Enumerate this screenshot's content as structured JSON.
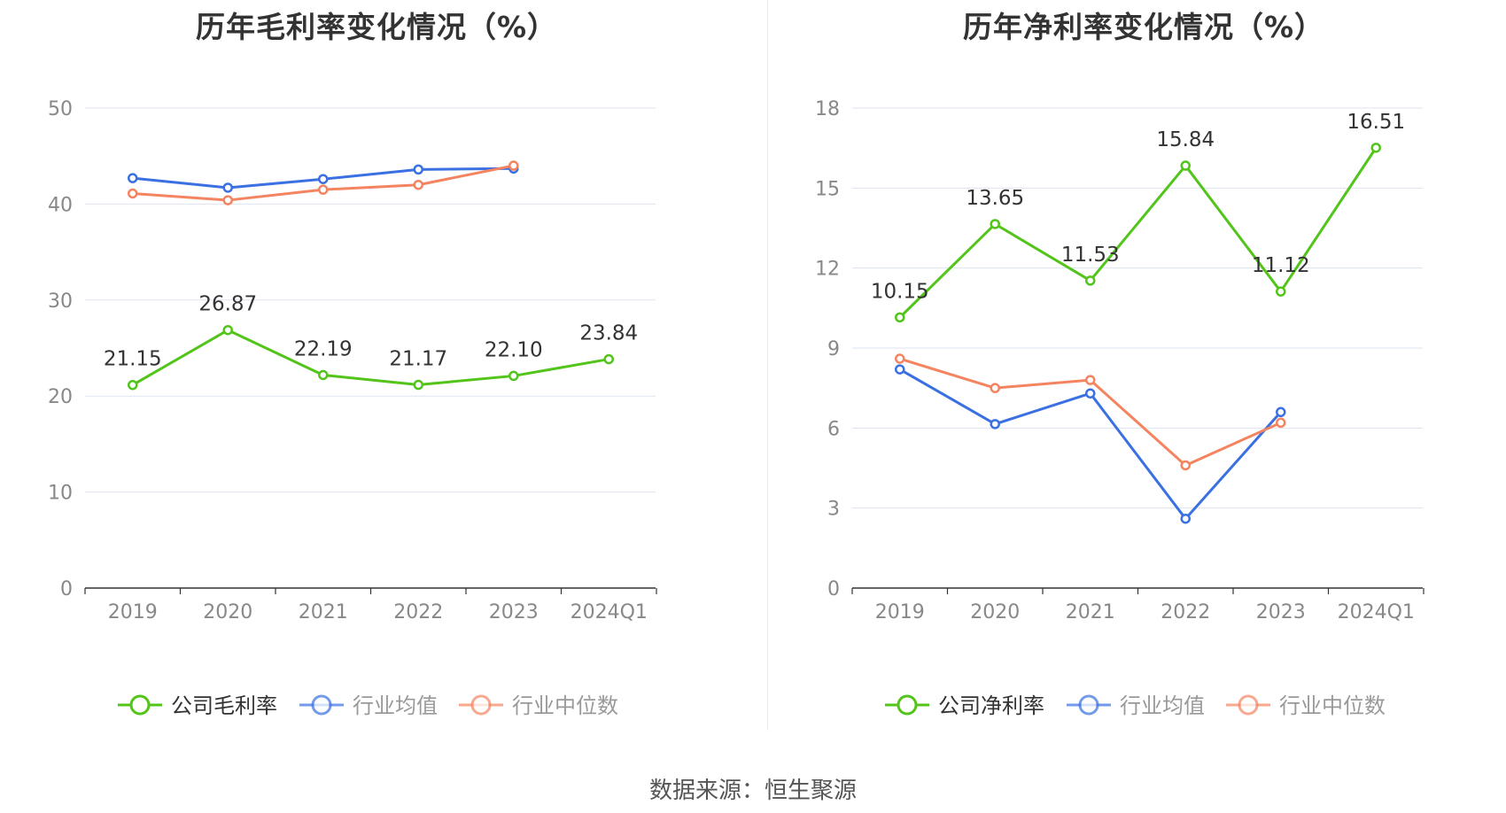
{
  "footer": {
    "source": "数据来源：恒生聚源"
  },
  "colors": {
    "company": "#52c41a",
    "avg": "#3a70e2",
    "median": "#f4845f",
    "grid": "#dde3f0",
    "axis": "#333333",
    "tick": "#888888"
  },
  "chart_data": [
    {
      "type": "line",
      "title": "历年毛利率变化情况（%）",
      "categories": [
        "2019",
        "2020",
        "2021",
        "2022",
        "2023",
        "2024Q1"
      ],
      "ylim": [
        0,
        50
      ],
      "yticks": [
        0,
        10,
        20,
        30,
        40,
        50
      ],
      "grid": true,
      "legend_position": "bottom",
      "series": [
        {
          "name": "公司毛利率",
          "color": "#52c41a",
          "values": [
            21.15,
            26.87,
            22.19,
            21.17,
            22.1,
            23.84
          ],
          "labels": [
            "21.15",
            "26.87",
            "22.19",
            "21.17",
            "22.10",
            "23.84"
          ]
        },
        {
          "name": "行业均值",
          "color": "#3a70e2",
          "values": [
            42.7,
            41.7,
            42.6,
            43.6,
            43.7,
            null
          ]
        },
        {
          "name": "行业中位数",
          "color": "#f4845f",
          "values": [
            41.1,
            40.4,
            41.5,
            42.0,
            44.0,
            null
          ]
        }
      ]
    },
    {
      "type": "line",
      "title": "历年净利率变化情况（%）",
      "categories": [
        "2019",
        "2020",
        "2021",
        "2022",
        "2023",
        "2024Q1"
      ],
      "ylim": [
        0,
        18
      ],
      "yticks": [
        0,
        3,
        6,
        9,
        12,
        15,
        18
      ],
      "grid": true,
      "legend_position": "bottom",
      "series": [
        {
          "name": "公司净利率",
          "color": "#52c41a",
          "values": [
            10.15,
            13.65,
            11.53,
            15.84,
            11.12,
            16.51
          ],
          "labels": [
            "10.15",
            "13.65",
            "11.53",
            "15.84",
            "11.12",
            "16.51"
          ]
        },
        {
          "name": "行业均值",
          "color": "#3a70e2",
          "values": [
            8.2,
            6.15,
            7.3,
            2.6,
            6.6,
            null
          ]
        },
        {
          "name": "行业中位数",
          "color": "#f4845f",
          "values": [
            8.6,
            7.5,
            7.8,
            4.6,
            6.2,
            null
          ]
        }
      ]
    }
  ]
}
